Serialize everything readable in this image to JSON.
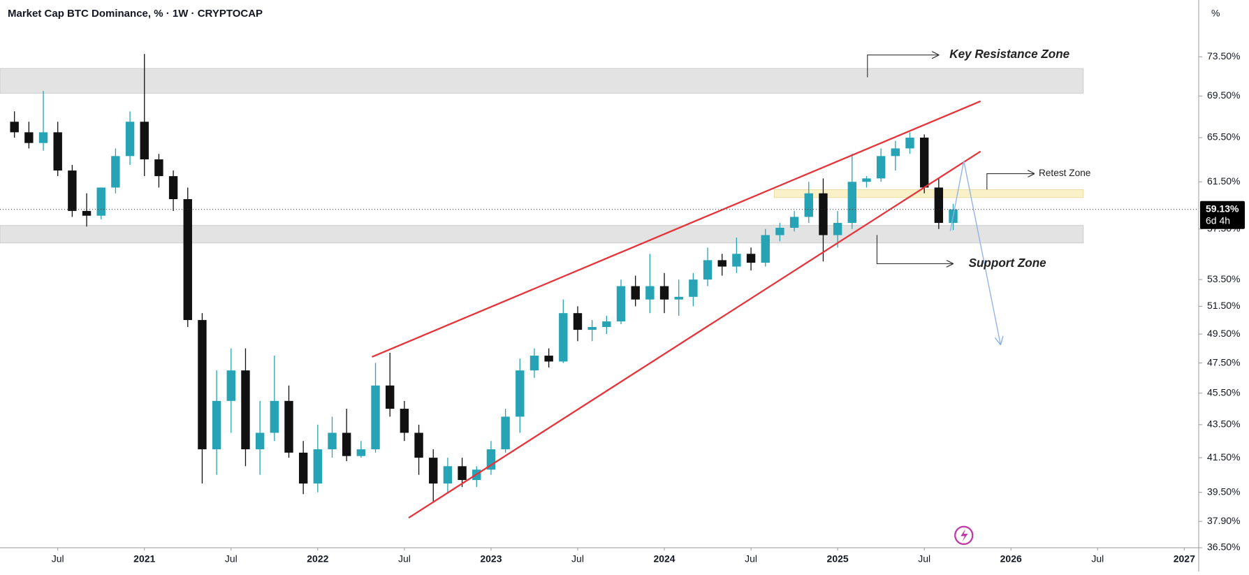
{
  "header": {
    "title": "Market Cap BTC Dominance, % · 1W · CRYPTOCAP",
    "unit": "%"
  },
  "chart_data": {
    "type": "candlestick",
    "up_color": "#26a3b5",
    "down_color": "#111111",
    "log_scale": true,
    "grid": false,
    "ylim": [
      36.5,
      79.7
    ],
    "yticks": [
      {
        "value": 73.5,
        "label": "73.50%"
      },
      {
        "value": 69.5,
        "label": "69.50%"
      },
      {
        "value": 65.5,
        "label": "65.50%"
      },
      {
        "value": 61.5,
        "label": "61.50%"
      },
      {
        "value": 57.5,
        "label": "57.50%"
      },
      {
        "value": 53.5,
        "label": "53.50%"
      },
      {
        "value": 51.5,
        "label": "51.50%"
      },
      {
        "value": 49.5,
        "label": "49.50%"
      },
      {
        "value": 47.5,
        "label": "47.50%"
      },
      {
        "value": 45.5,
        "label": "45.50%"
      },
      {
        "value": 43.5,
        "label": "43.50%"
      },
      {
        "value": 41.5,
        "label": "41.50%"
      },
      {
        "value": 39.5,
        "label": "39.50%"
      },
      {
        "value": 37.9,
        "label": "37.90%"
      },
      {
        "value": 36.5,
        "label": "36.50%"
      }
    ],
    "xlim": [
      "2020-03",
      "2027-02"
    ],
    "xticks": [
      {
        "value": "2020-07",
        "label": "Jul"
      },
      {
        "value": "2021-01",
        "label": "2021"
      },
      {
        "value": "2021-07",
        "label": "Jul"
      },
      {
        "value": "2022-01",
        "label": "2022"
      },
      {
        "value": "2022-07",
        "label": "Jul"
      },
      {
        "value": "2023-01",
        "label": "2023"
      },
      {
        "value": "2023-07",
        "label": "Jul"
      },
      {
        "value": "2024-01",
        "label": "2024"
      },
      {
        "value": "2024-07",
        "label": "Jul"
      },
      {
        "value": "2025-01",
        "label": "2025"
      },
      {
        "value": "2025-07",
        "label": "Jul"
      },
      {
        "value": "2026-01",
        "label": "2026"
      },
      {
        "value": "2026-07",
        "label": "Jul"
      },
      {
        "value": "2027-01",
        "label": "2027"
      }
    ],
    "x": [
      "2020-04",
      "2020-05",
      "2020-06",
      "2020-07",
      "2020-08",
      "2020-09",
      "2020-10",
      "2020-11",
      "2020-12",
      "2021-01",
      "2021-02",
      "2021-03",
      "2021-04",
      "2021-05",
      "2021-06",
      "2021-07",
      "2021-08",
      "2021-09",
      "2021-10",
      "2021-11",
      "2021-12",
      "2022-01",
      "2022-02",
      "2022-03",
      "2022-04",
      "2022-05",
      "2022-06",
      "2022-07",
      "2022-08",
      "2022-09",
      "2022-10",
      "2022-11",
      "2022-12",
      "2023-01",
      "2023-02",
      "2023-03",
      "2023-04",
      "2023-05",
      "2023-06",
      "2023-07",
      "2023-08",
      "2023-09",
      "2023-10",
      "2023-11",
      "2023-12",
      "2024-01",
      "2024-02",
      "2024-03",
      "2024-04",
      "2024-05",
      "2024-06",
      "2024-07",
      "2024-08",
      "2024-09",
      "2024-10",
      "2024-11",
      "2024-12",
      "2025-01",
      "2025-02",
      "2025-03",
      "2025-04",
      "2025-05",
      "2025-06",
      "2025-07",
      "2025-08",
      "2025-09"
    ],
    "open": [
      67,
      66,
      65,
      66,
      62.5,
      59,
      58.6,
      61,
      63.8,
      67,
      63.5,
      62,
      60,
      50.5,
      42,
      45,
      47,
      42,
      43,
      45,
      41.8,
      40,
      42,
      43,
      41.6,
      42,
      46,
      44.5,
      43,
      41.5,
      40,
      41,
      40.2,
      40.8,
      42,
      44,
      47,
      48,
      47.6,
      51,
      49.8,
      50,
      50.4,
      53,
      52,
      53,
      52,
      52.2,
      53.5,
      55,
      54.5,
      55.5,
      54.8,
      57,
      57.6,
      58.5,
      60.5,
      57,
      58,
      61.5,
      61.8,
      63.8,
      64.5,
      65.5,
      61,
      58
    ],
    "high": [
      68,
      67,
      70,
      67,
      63,
      60.5,
      61,
      64.5,
      68,
      73.8,
      64,
      62.5,
      61,
      51,
      47,
      48.5,
      48.5,
      45,
      48,
      46,
      42.5,
      43.5,
      44,
      44.5,
      42.5,
      47.5,
      48.2,
      45,
      43.5,
      42,
      41.5,
      41.5,
      41,
      42.5,
      44.5,
      47.8,
      48.5,
      48.5,
      52,
      51.5,
      50.5,
      50.8,
      53.5,
      53.8,
      55.5,
      54,
      53.5,
      54,
      56,
      55.5,
      56.8,
      56,
      57.5,
      58,
      59,
      61.5,
      61.8,
      59,
      64,
      62,
      64.5,
      65.2,
      66,
      65.8,
      61.8,
      59.6
    ],
    "low": [
      65.5,
      64.5,
      64.3,
      62,
      58.5,
      57.7,
      58.3,
      60.5,
      63,
      62,
      61,
      59,
      50,
      40,
      40.5,
      43,
      41,
      40.5,
      42.5,
      41.5,
      39.4,
      39.5,
      41.5,
      41.3,
      41.5,
      41.8,
      44,
      42.5,
      40.5,
      39,
      39.5,
      39.8,
      39.8,
      40.5,
      41.8,
      43,
      46.5,
      47.2,
      47.5,
      49,
      49,
      49.5,
      50.2,
      51.5,
      51,
      51,
      50.8,
      51.5,
      53,
      53.8,
      54,
      54.2,
      54.5,
      56.5,
      57.3,
      58,
      54.9,
      56,
      57.5,
      61,
      61.5,
      62.5,
      64,
      60.5,
      57.5,
      57.4
    ],
    "close": [
      66,
      65,
      66,
      62.5,
      59,
      58.6,
      61,
      63.8,
      67,
      63.5,
      62,
      60,
      50.5,
      42,
      45,
      47,
      42,
      43,
      45,
      41.8,
      40,
      42,
      43,
      41.6,
      42,
      46,
      44.5,
      43,
      41.5,
      40,
      41,
      40.2,
      40.8,
      42,
      44,
      47,
      48,
      47.6,
      51,
      49.8,
      50,
      50.4,
      53,
      52,
      53,
      52,
      52.2,
      53.5,
      55,
      54.5,
      55.5,
      54.8,
      57,
      57.6,
      58.5,
      60.5,
      57,
      58,
      61.5,
      61.8,
      63.8,
      64.5,
      65.5,
      61,
      58,
      59.13
    ],
    "last_price": {
      "value": 59.13,
      "label": "59.13%"
    },
    "countdown": "6d 4h",
    "annotations": {
      "resistance": "Key Resistance Zone",
      "retest": "Retest Zone",
      "support": "Support Zone"
    }
  }
}
